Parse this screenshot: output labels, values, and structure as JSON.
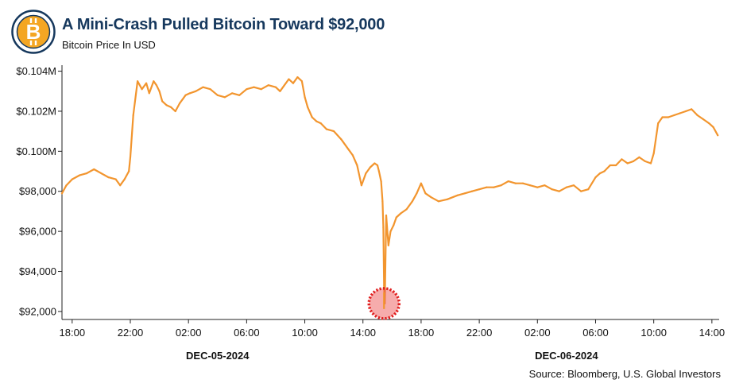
{
  "header": {
    "title": "A Mini-Crash Pulled Bitcoin Toward $92,000",
    "subtitle": "Bitcoin Price In USD",
    "logo_icon": "bitcoin-icon",
    "logo_glyph": "B"
  },
  "footer": {
    "source": "Source: Bloomberg, U.S. Global Investors"
  },
  "colors": {
    "title": "#16385d",
    "line": "#f2952e",
    "highlight": "#e01e1e",
    "logo_ring": "#16385d",
    "logo_coin": "#f4a623"
  },
  "chart_data": {
    "type": "line",
    "title": "A Mini-Crash Pulled Bitcoin Toward $92,000",
    "subtitle": "Bitcoin Price In USD",
    "xlabel": "",
    "ylabel": "",
    "x_unit": "hours",
    "xlim": [
      17.3,
      62.5
    ],
    "ylim": [
      91600,
      104300
    ],
    "yticks": [
      92000,
      94000,
      96000,
      98000,
      100000,
      102000,
      104000
    ],
    "ytick_labels": [
      "$92,000",
      "$94,000",
      "$96,000",
      "$98,000",
      "$0.100M",
      "$0.102M",
      "$0.104M"
    ],
    "xticks": [
      18,
      22,
      26,
      30,
      34,
      38,
      42,
      46,
      50,
      54,
      58,
      62
    ],
    "xtick_labels": [
      "18:00",
      "22:00",
      "02:00",
      "06:00",
      "10:00",
      "14:00",
      "18:00",
      "22:00",
      "02:00",
      "06:00",
      "10:00",
      "14:00"
    ],
    "date_labels": [
      {
        "x": 28,
        "label": "DEC-05-2024"
      },
      {
        "x": 52,
        "label": "DEC-06-2024"
      }
    ],
    "grid": false,
    "annotation": {
      "x": 39.45,
      "y": 92400,
      "shape": "dotted-circle",
      "note": ""
    },
    "x": [
      17.3,
      17.6,
      18.0,
      18.5,
      19.0,
      19.5,
      20.0,
      20.5,
      21.0,
      21.3,
      21.6,
      21.9,
      22.0,
      22.2,
      22.5,
      22.8,
      23.1,
      23.3,
      23.6,
      23.8,
      24.0,
      24.2,
      24.5,
      24.8,
      25.1,
      25.4,
      25.6,
      25.8,
      26.1,
      26.5,
      27.0,
      27.5,
      28.0,
      28.5,
      29.0,
      29.5,
      30.0,
      30.5,
      31.0,
      31.5,
      32.0,
      32.3,
      32.6,
      32.9,
      33.2,
      33.5,
      33.8,
      34.0,
      34.2,
      34.5,
      34.8,
      35.1,
      35.5,
      36.0,
      36.5,
      37.0,
      37.3,
      37.6,
      37.9,
      38.2,
      38.5,
      38.8,
      39.0,
      39.1,
      39.25,
      39.35,
      39.4,
      39.45,
      39.5,
      39.6,
      39.75,
      39.9,
      40.1,
      40.3,
      40.6,
      41.0,
      41.4,
      41.7,
      42.0,
      42.3,
      42.7,
      43.2,
      43.8,
      44.5,
      45.0,
      45.5,
      46.0,
      46.5,
      47.0,
      47.5,
      48.0,
      48.5,
      49.0,
      49.5,
      50.0,
      50.5,
      51.0,
      51.5,
      52.0,
      52.5,
      53.0,
      53.5,
      54.0,
      54.3,
      54.6,
      55.0,
      55.4,
      55.8,
      56.2,
      56.6,
      57.0,
      57.4,
      57.8,
      58.0,
      58.3,
      58.6,
      59.0,
      59.4,
      59.8,
      60.2,
      60.6,
      61.0,
      61.4,
      61.8,
      62.1,
      62.4
    ],
    "y": [
      97900,
      98300,
      98600,
      98800,
      98900,
      99100,
      98900,
      98700,
      98600,
      98300,
      98600,
      99000,
      99700,
      101800,
      103500,
      103100,
      103400,
      102900,
      103500,
      103300,
      103000,
      102500,
      102300,
      102200,
      102000,
      102400,
      102600,
      102800,
      102900,
      103000,
      103200,
      103100,
      102800,
      102700,
      102900,
      102800,
      103100,
      103200,
      103100,
      103300,
      103200,
      103000,
      103300,
      103600,
      103400,
      103700,
      103500,
      102700,
      102200,
      101700,
      101500,
      101400,
      101100,
      101000,
      100600,
      100100,
      99800,
      99300,
      98300,
      98900,
      99200,
      99400,
      99300,
      99000,
      98500,
      97500,
      96200,
      93300,
      92400,
      96800,
      95300,
      96000,
      96300,
      96700,
      96900,
      97100,
      97500,
      97900,
      98400,
      97900,
      97700,
      97500,
      97600,
      97800,
      97900,
      98000,
      98100,
      98200,
      98200,
      98300,
      98500,
      98400,
      98400,
      98300,
      98200,
      98300,
      98100,
      98000,
      98200,
      98300,
      98000,
      98100,
      98700,
      98900,
      99000,
      99300,
      99300,
      99600,
      99400,
      99500,
      99700,
      99500,
      99400,
      99900,
      101400,
      101700,
      101700,
      101800,
      101900,
      102000,
      102100,
      101800,
      101600,
      101400,
      101200,
      100800
    ]
  }
}
